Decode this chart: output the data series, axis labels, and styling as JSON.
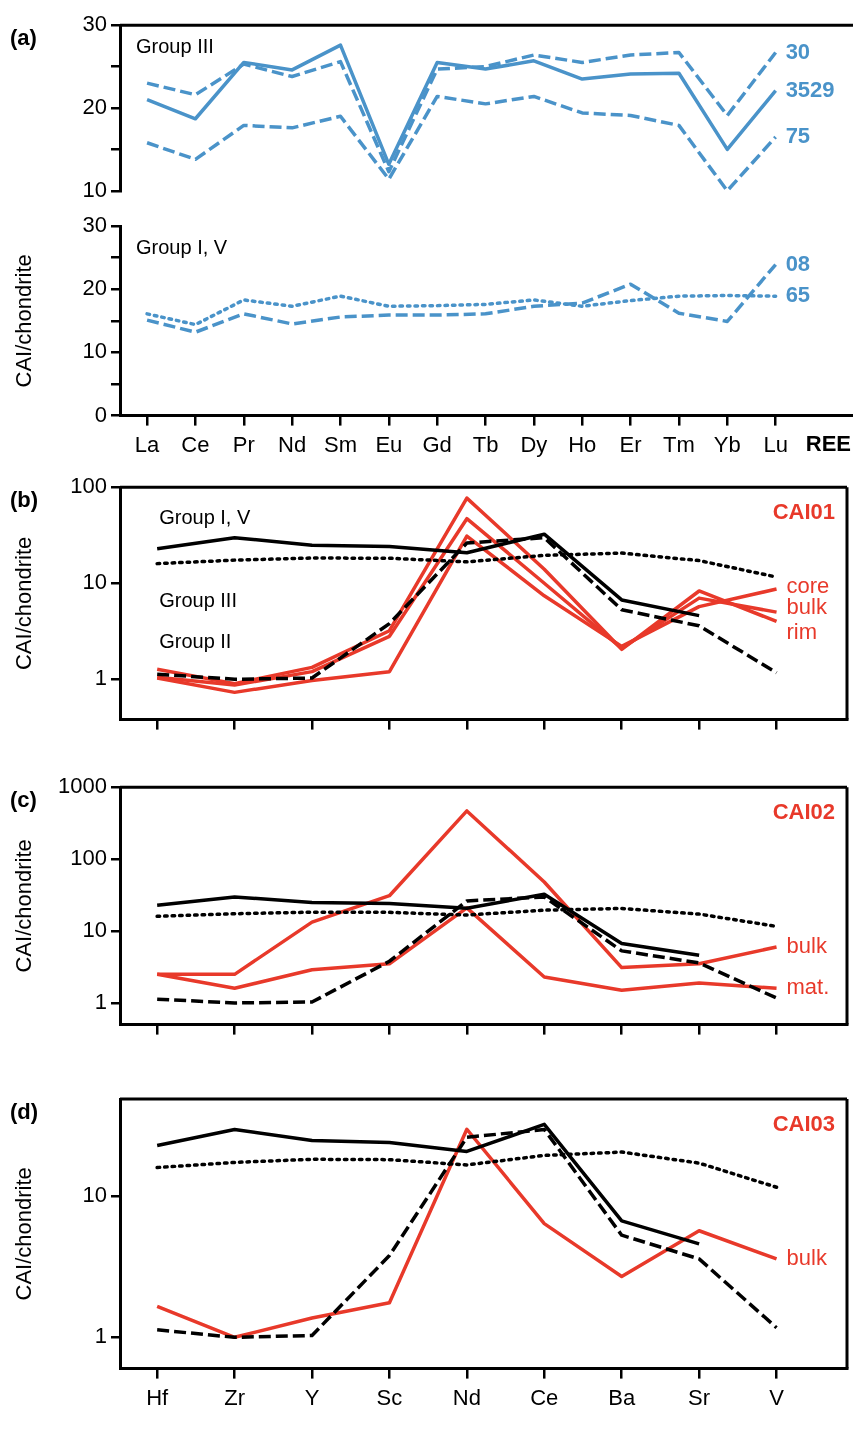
{
  "chart_data": [
    {
      "type": "line",
      "categories": [
        null,
        null,
        null,
        null,
        null,
        null,
        null,
        null,
        null,
        null,
        null,
        null,
        null,
        null
      ],
      "ylim": [
        10,
        30
      ],
      "yticks": [
        10,
        {
          "value": 15,
          "label": null
        },
        20,
        {
          "value": 25,
          "label": null
        },
        30
      ],
      "tick_labels": "y",
      "grid": false,
      "legend": false,
      "annotations": [
        "(a)",
        "Group III"
      ],
      "series": [
        {
          "name": "30",
          "color": "#4a93c9",
          "line_style": "dashed",
          "values": [
            23.0,
            21.6,
            25.3,
            23.8,
            25.6,
            12.3,
            24.7,
            25.0,
            26.4,
            25.5,
            26.4,
            26.7,
            19.1,
            26.7
          ]
        },
        {
          "name": "3529",
          "color": "#4a93c9",
          "line_style": "solid",
          "values": [
            21.0,
            18.7,
            25.5,
            24.6,
            27.6,
            13.2,
            25.5,
            24.7,
            25.7,
            23.5,
            24.1,
            24.2,
            15.0,
            22.1
          ]
        },
        {
          "name": "75",
          "color": "#4a93c9",
          "line_style": "dashed",
          "values": [
            15.8,
            13.8,
            17.9,
            17.6,
            19.0,
            11.4,
            21.4,
            20.5,
            21.4,
            19.4,
            19.1,
            17.9,
            10.0,
            16.5
          ]
        }
      ]
    },
    {
      "type": "line",
      "categories": [
        "La",
        "Ce",
        "Pr",
        "Nd",
        "Sm",
        "Eu",
        "Gd",
        "Tb",
        "Dy",
        "Ho",
        "Er",
        "Tm",
        "Yb",
        "Lu"
      ],
      "xlabel": "REE",
      "ylabel": "CAI/chondrite",
      "ylim": [
        0,
        30
      ],
      "yticks": [
        0,
        {
          "value": 5,
          "label": null
        },
        10,
        {
          "value": 15,
          "label": null
        },
        20,
        {
          "value": 25,
          "label": null
        },
        30
      ],
      "grid": false,
      "legend": false,
      "annotations": [
        "Group I, V"
      ],
      "series": [
        {
          "name": "08",
          "color": "#4a93c9",
          "line_style": "dashed",
          "values": [
            15.1,
            13.2,
            16.1,
            14.5,
            15.6,
            15.9,
            15.9,
            16.1,
            17.3,
            17.8,
            20.8,
            16.2,
            14.9,
            23.9
          ]
        },
        {
          "name": "65",
          "color": "#4a93c9",
          "line_style": "dotted",
          "values": [
            16.1,
            14.4,
            18.3,
            17.3,
            18.9,
            17.3,
            17.4,
            17.6,
            18.3,
            17.3,
            18.2,
            18.9,
            19.0,
            18.9
          ]
        }
      ]
    },
    {
      "type": "line",
      "categories": [
        null,
        null,
        null,
        null,
        null,
        null,
        null,
        null,
        null
      ],
      "ylabel": "CAI/chondrite",
      "log": true,
      "ylim": [
        0.38,
        100
      ],
      "yticks": [
        1,
        10,
        100
      ],
      "tick_labels": "y",
      "grid": false,
      "legend": false,
      "annotations": [
        "(b)",
        "CAI01"
      ],
      "series": [
        {
          "name": "Group I, V",
          "color": "#000000",
          "line_style": "solid",
          "values": [
            22.9,
            29.8,
            24.9,
            24.1,
            20.8,
            32.4,
            6.7,
            4.6,
            null
          ]
        },
        {
          "name": "Group III",
          "color": "#000000",
          "line_style": "dotted",
          "values": [
            16.0,
            17.4,
            18.3,
            18.2,
            16.7,
            19.5,
            20.6,
            17.2,
            11.6
          ]
        },
        {
          "name": "Group II",
          "color": "#000000",
          "line_style": "dashed",
          "values": [
            1.13,
            1.0,
            1.03,
            3.8,
            26.2,
            29.8,
            5.3,
            3.6,
            1.17
          ]
        },
        {
          "name": "core",
          "color": "#e8392a",
          "line_style": "solid",
          "values": [
            1.03,
            0.73,
            0.97,
            1.2,
            31,
            7.4,
            2.2,
            5.7,
            8.7
          ]
        },
        {
          "name": "bulk",
          "color": "#e8392a",
          "line_style": "solid",
          "values": [
            1.05,
            0.87,
            1.2,
            2.8,
            47,
            10,
            2.1,
            7.0,
            5.0
          ]
        },
        {
          "name": "rim",
          "color": "#e8392a",
          "line_style": "solid",
          "values": [
            1.27,
            0.9,
            1.33,
            3.2,
            77,
            14,
            2.05,
            8.3,
            4.0
          ]
        }
      ]
    },
    {
      "type": "line",
      "categories": [
        null,
        null,
        null,
        null,
        null,
        null,
        null,
        null,
        null
      ],
      "ylabel": "CAI/chondrite",
      "log": true,
      "ylim": [
        0.5,
        1000
      ],
      "yticks": [
        1,
        10,
        100,
        1000
      ],
      "tick_labels": "y",
      "grid": false,
      "legend": false,
      "annotations": [
        "(c)",
        "CAI02"
      ],
      "series": [
        {
          "color": "#000000",
          "line_style": "solid",
          "values": [
            22.9,
            29.8,
            24.9,
            24.1,
            20.8,
            32.4,
            6.7,
            4.6,
            null
          ]
        },
        {
          "color": "#000000",
          "line_style": "dotted",
          "values": [
            16.0,
            17.4,
            18.3,
            18.2,
            16.7,
            19.5,
            20.6,
            17.2,
            11.6
          ]
        },
        {
          "color": "#000000",
          "line_style": "dashed",
          "values": [
            1.13,
            1.0,
            1.03,
            3.8,
            26.2,
            29.8,
            5.3,
            3.6,
            1.17
          ]
        },
        {
          "name": "bulk",
          "color": "#e8392a",
          "line_style": "solid",
          "values": [
            2.5,
            2.5,
            13.3,
            31,
            468,
            48,
            3.1,
            3.5,
            6.0
          ]
        },
        {
          "name": "mat.",
          "color": "#e8392a",
          "line_style": "solid",
          "values": [
            2.5,
            1.6,
            2.9,
            3.5,
            21,
            2.3,
            1.5,
            1.9,
            1.6
          ]
        }
      ]
    },
    {
      "type": "line",
      "categories": [
        "Hf",
        "Zr",
        "Y",
        "Sc",
        "Nd",
        "Ce",
        "Ba",
        "Sr",
        "V"
      ],
      "ylabel": "CAI/chondrite",
      "log": true,
      "ylim": [
        0.6,
        49
      ],
      "yticks": [
        1,
        10
      ],
      "grid": false,
      "legend": false,
      "annotations": [
        "(d)",
        "CAI03"
      ],
      "series": [
        {
          "color": "#000000",
          "line_style": "solid",
          "values": [
            22.9,
            29.8,
            24.9,
            24.1,
            20.8,
            32.4,
            6.7,
            4.6,
            null
          ]
        },
        {
          "color": "#000000",
          "line_style": "dotted",
          "values": [
            16.0,
            17.4,
            18.3,
            18.2,
            16.7,
            19.5,
            20.6,
            17.2,
            11.6
          ]
        },
        {
          "color": "#000000",
          "line_style": "dashed",
          "values": [
            1.13,
            1.0,
            1.03,
            3.8,
            26.2,
            29.8,
            5.3,
            3.6,
            1.17
          ]
        },
        {
          "name": "bulk",
          "color": "#e8392a",
          "line_style": "solid",
          "values": [
            1.66,
            1.0,
            1.37,
            1.76,
            29.9,
            6.4,
            2.7,
            5.7,
            3.6
          ]
        }
      ]
    }
  ]
}
